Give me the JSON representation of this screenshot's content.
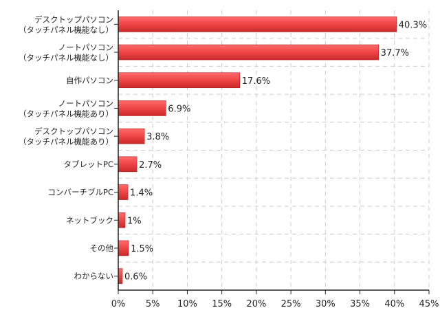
{
  "chart_data": {
    "type": "bar",
    "orientation": "horizontal",
    "categories": [
      [
        "デスクトップパソコン",
        "（タッチパネル機能なし）"
      ],
      [
        "ノートパソコン",
        "（タッチパネル機能なし）"
      ],
      [
        "自作パソコン"
      ],
      [
        "ノートパソコン",
        "（タッチパネル機能あり）"
      ],
      [
        "デスクトップパソコン",
        "（タッチパネル機能あり）"
      ],
      [
        "タブレットPC"
      ],
      [
        "コンバーチブルPC"
      ],
      [
        "ネットブック"
      ],
      [
        "その他"
      ],
      [
        "わからない"
      ]
    ],
    "values": [
      40.3,
      37.7,
      17.6,
      6.9,
      3.8,
      2.7,
      1.4,
      1.0,
      1.5,
      0.6
    ],
    "value_labels": [
      "40.3%",
      "37.7%",
      "17.6%",
      "6.9%",
      "3.8%",
      "2.7%",
      "1.4%",
      "1%",
      "1.5%",
      "0.6%"
    ],
    "xlim": [
      0,
      45
    ],
    "xticks": [
      "0%",
      "5%",
      "10%",
      "15%",
      "20%",
      "25%",
      "30%",
      "35%",
      "40%",
      "45%"
    ],
    "xlabel": "",
    "ylabel": "",
    "title": "",
    "grid": true,
    "bar_color": "#f04444"
  }
}
